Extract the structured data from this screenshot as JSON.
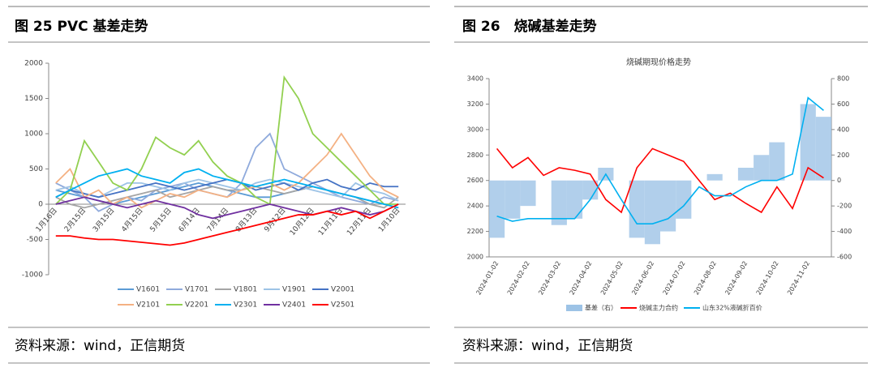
{
  "chart_data": [
    {
      "type": "line",
      "figure_title": "图 25 PVC 基差走势",
      "source": "资料来源：wind，正信期货",
      "categories": [
        "1月16日",
        null,
        "2月15日",
        null,
        "3月15日",
        null,
        "4月15日",
        null,
        "5月15日",
        null,
        "6月14日",
        null,
        "7月14日",
        null,
        "8月13日",
        null,
        "9月12日",
        null,
        "10月12日",
        null,
        "11月11日",
        null,
        "12月11日",
        null,
        "1月10日"
      ],
      "ylim": [
        -1000,
        2000
      ],
      "yticks": [
        -1000,
        -500,
        0,
        500,
        1000,
        1500,
        2000
      ],
      "series": [
        {
          "name": "V1601",
          "color": "#5b9bd5",
          "values": [
            200,
            150,
            100,
            50,
            0,
            50,
            100,
            150,
            200,
            250,
            300,
            250,
            200,
            150,
            100,
            100,
            150,
            200,
            250,
            200,
            150,
            100,
            50,
            0,
            -50
          ]
        },
        {
          "name": "V1701",
          "color": "#8faadc",
          "values": [
            300,
            200,
            100,
            -100,
            0,
            100,
            50,
            200,
            250,
            300,
            200,
            150,
            100,
            300,
            800,
            1000,
            500,
            400,
            300,
            200,
            100,
            50,
            0,
            100,
            50
          ]
        },
        {
          "name": "V1801",
          "color": "#a5a5a5",
          "values": [
            100,
            0,
            -50,
            0,
            50,
            100,
            150,
            200,
            100,
            150,
            200,
            250,
            200,
            200,
            250,
            200,
            150,
            200,
            250,
            200,
            150,
            100,
            0,
            -50,
            100
          ]
        },
        {
          "name": "V1901",
          "color": "#9dc3e6",
          "values": [
            200,
            250,
            150,
            100,
            200,
            300,
            300,
            250,
            200,
            300,
            350,
            300,
            250,
            200,
            300,
            350,
            300,
            250,
            200,
            150,
            100,
            300,
            200,
            150,
            50
          ]
        },
        {
          "name": "V2001",
          "color": "#4472c4",
          "values": [
            100,
            200,
            150,
            100,
            150,
            200,
            250,
            300,
            250,
            200,
            250,
            300,
            350,
            300,
            200,
            250,
            300,
            200,
            300,
            350,
            250,
            200,
            300,
            250,
            250
          ]
        },
        {
          "name": "V2101",
          "color": "#f4b183",
          "values": [
            300,
            500,
            100,
            200,
            0,
            100,
            -50,
            50,
            150,
            100,
            200,
            150,
            100,
            200,
            250,
            300,
            200,
            300,
            500,
            700,
            1000,
            700,
            400,
            200,
            100
          ]
        },
        {
          "name": "V2201",
          "color": "#92d050",
          "values": [
            0,
            200,
            900,
            600,
            300,
            200,
            500,
            950,
            800,
            700,
            900,
            600,
            400,
            300,
            100,
            0,
            1800,
            1500,
            1000,
            800,
            600,
            400,
            200,
            0,
            0
          ]
        },
        {
          "name": "V2301",
          "color": "#00b0f0",
          "values": [
            100,
            200,
            300,
            400,
            450,
            500,
            400,
            350,
            300,
            450,
            500,
            400,
            350,
            300,
            250,
            300,
            350,
            300,
            250,
            200,
            150,
            100,
            50,
            0,
            -50
          ]
        },
        {
          "name": "V2401",
          "color": "#7030a0",
          "values": [
            0,
            50,
            100,
            50,
            0,
            -50,
            0,
            50,
            0,
            -50,
            -150,
            -200,
            -150,
            -100,
            -50,
            0,
            -50,
            -100,
            -150,
            -100,
            -50,
            -100,
            -150,
            -100,
            0
          ]
        },
        {
          "name": "V2501",
          "color": "#ff0000",
          "values": [
            -450,
            -450,
            -480,
            -500,
            -500,
            -520,
            -540,
            -560,
            -580,
            -550,
            -500,
            -450,
            -400,
            -350,
            -300,
            -250,
            -200,
            -150,
            -150,
            -100,
            -150,
            -100,
            -200,
            -100,
            0
          ]
        }
      ]
    },
    {
      "type": "line",
      "figure_title": "图 26　烧碱基差走势",
      "title": "烧碱期现价格走势",
      "source": "资料来源：wind，正信期货",
      "categories": [
        "2024-01-02",
        null,
        "2024-02-02",
        null,
        "2024-03-02",
        null,
        "2024-04-02",
        null,
        "2024-05-02",
        null,
        "2024-06-02",
        null,
        "2024-07-02",
        null,
        "2024-08-02",
        null,
        "2024-09-02",
        null,
        "2024-10-02",
        null,
        "2024-11-02",
        null
      ],
      "ylim": [
        2000,
        3400
      ],
      "yticks": [
        2000,
        2200,
        2400,
        2600,
        2800,
        3000,
        3200,
        3400
      ],
      "y2lim": [
        -600,
        800
      ],
      "y2ticks": [
        -600,
        -400,
        -200,
        0,
        200,
        400,
        600,
        800
      ],
      "series": [
        {
          "name": "基差（右）",
          "type": "bar",
          "axis": "y2",
          "color": "#9dc3e6",
          "values": [
            -450,
            -300,
            -200,
            0,
            -350,
            -300,
            -150,
            100,
            0,
            -450,
            -500,
            -400,
            -300,
            0,
            50,
            0,
            100,
            200,
            300,
            0,
            600,
            500
          ]
        },
        {
          "name": "烧碱主力合约",
          "color": "#ff0000",
          "values": [
            2850,
            2700,
            2780,
            2640,
            2700,
            2680,
            2650,
            2450,
            2350,
            2700,
            2850,
            2800,
            2750,
            2600,
            2450,
            2500,
            2420,
            2350,
            2550,
            2380,
            2700,
            2620
          ]
        },
        {
          "name": "山东32%液碱折百价",
          "color": "#00b0f0",
          "values": [
            2320,
            2280,
            2300,
            2300,
            2300,
            2300,
            2450,
            2650,
            2450,
            2260,
            2260,
            2300,
            2400,
            2550,
            2480,
            2480,
            2550,
            2600,
            2600,
            2650,
            3250,
            3150
          ]
        }
      ]
    }
  ]
}
